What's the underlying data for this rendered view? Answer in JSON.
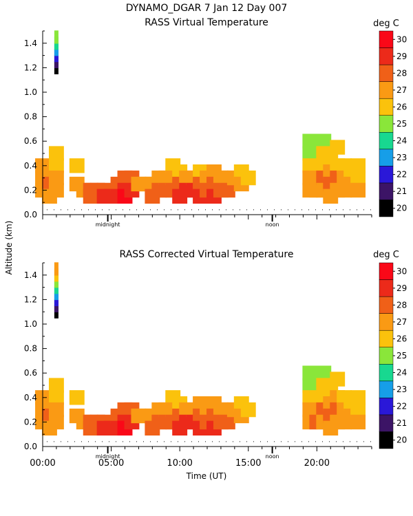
{
  "header": {
    "title": "DYNAMO_DGAR    7 Jan 12 Day 007"
  },
  "shared": {
    "ylabel": "Altitude (km)",
    "xlabel": "Time (UT)",
    "marker_midnight": "midnight",
    "marker_noon": "noon",
    "xlim": [
      0,
      24
    ],
    "ylim": [
      0,
      1.5
    ],
    "y_ticks": [
      "0.0",
      "0.2",
      "0.4",
      "0.6",
      "0.8",
      "1.0",
      "1.2",
      "1.4"
    ],
    "x_ticks": [
      "00:00",
      "05:00",
      "10:00",
      "15:00",
      "20:00"
    ],
    "colorbar_label": "deg C",
    "colorbar_ticks": [
      "20",
      "21",
      "22",
      "23",
      "24",
      "25",
      "26",
      "27",
      "28",
      "29",
      "30"
    ],
    "colorscale": [
      {
        "min": 20,
        "max": 21,
        "color": "#000000"
      },
      {
        "min": 21,
        "max": 22,
        "color": "#3c1466"
      },
      {
        "min": 22,
        "max": 23,
        "color": "#2a18d8"
      },
      {
        "min": 23,
        "max": 24,
        "color": "#169ee8"
      },
      {
        "min": 24,
        "max": 25,
        "color": "#18d890"
      },
      {
        "min": 25,
        "max": 26,
        "color": "#8ae63a"
      },
      {
        "min": 26,
        "max": 27,
        "color": "#fbc20c"
      },
      {
        "min": 27,
        "max": 28,
        "color": "#fa9a14"
      },
      {
        "min": 28,
        "max": 29,
        "color": "#f06018"
      },
      {
        "min": 29,
        "max": 30,
        "color": "#ec2a1a"
      },
      {
        "min": 30,
        "max": 31,
        "color": "#fa0818"
      }
    ]
  },
  "chart_data": [
    {
      "type": "heatmap",
      "title": "RASS Virtual Temperature",
      "xlabel": "",
      "ylabel": "Altitude (km)",
      "xlim": [
        0,
        24
      ],
      "ylim": [
        0,
        1.5
      ],
      "units": "deg C",
      "x_unit": "hours UT",
      "y_unit": "km",
      "cells": [
        {
          "t": 0.0,
          "z": 0.4,
          "v": 27.0
        },
        {
          "t": 0.0,
          "z": 0.3,
          "v": 27.6
        },
        {
          "t": 0.0,
          "z": 0.2,
          "v": 27.2
        },
        {
          "t": 0.5,
          "z": 0.35,
          "v": 27.5
        },
        {
          "t": 0.5,
          "z": 0.25,
          "v": 28.0
        },
        {
          "t": 0.5,
          "z": 0.15,
          "v": 27.3
        },
        {
          "t": 1.0,
          "z": 0.5,
          "v": 26.3
        },
        {
          "t": 1.0,
          "z": 0.4,
          "v": 26.6
        },
        {
          "t": 1.0,
          "z": 0.3,
          "v": 27.2
        },
        {
          "t": 1.0,
          "z": 0.2,
          "v": 27.6
        },
        {
          "t": 1.0,
          "z": 1.2,
          "v": 20.5
        },
        {
          "t": 1.0,
          "z": 1.25,
          "v": 21.5
        },
        {
          "t": 1.0,
          "z": 1.3,
          "v": 22.5
        },
        {
          "t": 1.0,
          "z": 1.35,
          "v": 23.5
        },
        {
          "t": 1.0,
          "z": 1.4,
          "v": 24.5
        },
        {
          "t": 1.0,
          "z": 1.45,
          "v": 25.5
        },
        {
          "t": 2.5,
          "z": 0.4,
          "v": 26.4
        },
        {
          "t": 2.5,
          "z": 0.25,
          "v": 27.2
        },
        {
          "t": 3.0,
          "z": 0.2,
          "v": 27.5
        },
        {
          "t": 3.5,
          "z": 0.2,
          "v": 28.0
        },
        {
          "t": 3.5,
          "z": 0.15,
          "v": 28.6
        },
        {
          "t": 4.0,
          "z": 0.2,
          "v": 28.3
        },
        {
          "t": 4.0,
          "z": 0.15,
          "v": 28.8
        },
        {
          "t": 4.5,
          "z": 0.2,
          "v": 28.4
        },
        {
          "t": 4.5,
          "z": 0.15,
          "v": 29.2
        },
        {
          "t": 5.0,
          "z": 0.15,
          "v": 29.3
        },
        {
          "t": 5.5,
          "z": 0.25,
          "v": 28.7
        },
        {
          "t": 5.5,
          "z": 0.15,
          "v": 29.6
        },
        {
          "t": 6.0,
          "z": 0.3,
          "v": 28.4
        },
        {
          "t": 6.0,
          "z": 0.2,
          "v": 29.4
        },
        {
          "t": 6.0,
          "z": 0.15,
          "v": 30.0
        },
        {
          "t": 6.5,
          "z": 0.3,
          "v": 28.1
        },
        {
          "t": 6.5,
          "z": 0.2,
          "v": 29.1
        },
        {
          "t": 7.0,
          "z": 0.25,
          "v": 27.7
        },
        {
          "t": 7.5,
          "z": 0.25,
          "v": 27.4
        },
        {
          "t": 8.0,
          "z": 0.25,
          "v": 27.6
        },
        {
          "t": 8.0,
          "z": 0.15,
          "v": 28.4
        },
        {
          "t": 8.5,
          "z": 0.3,
          "v": 27.8
        },
        {
          "t": 8.5,
          "z": 0.2,
          "v": 28.6
        },
        {
          "t": 9.0,
          "z": 0.3,
          "v": 27.4
        },
        {
          "t": 9.0,
          "z": 0.2,
          "v": 28.8
        },
        {
          "t": 9.5,
          "z": 0.4,
          "v": 26.4
        },
        {
          "t": 9.5,
          "z": 0.3,
          "v": 27.3
        },
        {
          "t": 9.5,
          "z": 0.2,
          "v": 28.6
        },
        {
          "t": 10.0,
          "z": 0.35,
          "v": 26.8
        },
        {
          "t": 10.0,
          "z": 0.25,
          "v": 28.0
        },
        {
          "t": 10.0,
          "z": 0.15,
          "v": 29.4
        },
        {
          "t": 10.5,
          "z": 0.3,
          "v": 27.4
        },
        {
          "t": 10.5,
          "z": 0.2,
          "v": 29.3
        },
        {
          "t": 11.0,
          "z": 0.3,
          "v": 27.5
        },
        {
          "t": 11.0,
          "z": 0.2,
          "v": 29.0
        },
        {
          "t": 11.5,
          "z": 0.35,
          "v": 26.9
        },
        {
          "t": 11.5,
          "z": 0.25,
          "v": 28.6
        },
        {
          "t": 11.5,
          "z": 0.15,
          "v": 29.2
        },
        {
          "t": 12.0,
          "z": 0.3,
          "v": 27.5
        },
        {
          "t": 12.0,
          "z": 0.2,
          "v": 28.8
        },
        {
          "t": 12.5,
          "z": 0.35,
          "v": 27.0
        },
        {
          "t": 12.5,
          "z": 0.25,
          "v": 28.5
        },
        {
          "t": 12.5,
          "z": 0.15,
          "v": 29.1
        },
        {
          "t": 13.0,
          "z": 0.3,
          "v": 27.2
        },
        {
          "t": 13.0,
          "z": 0.2,
          "v": 28.6
        },
        {
          "t": 13.5,
          "z": 0.3,
          "v": 27.1
        },
        {
          "t": 13.5,
          "z": 0.2,
          "v": 28.3
        },
        {
          "t": 14.0,
          "z": 0.3,
          "v": 27.3
        },
        {
          "t": 14.5,
          "z": 0.35,
          "v": 26.6
        },
        {
          "t": 14.5,
          "z": 0.25,
          "v": 27.4
        },
        {
          "t": 15.0,
          "z": 0.3,
          "v": 26.8
        },
        {
          "t": 19.5,
          "z": 0.6,
          "v": 25.3
        },
        {
          "t": 19.5,
          "z": 0.5,
          "v": 25.6
        },
        {
          "t": 19.5,
          "z": 0.4,
          "v": 26.3
        },
        {
          "t": 19.5,
          "z": 0.3,
          "v": 27.2
        },
        {
          "t": 19.5,
          "z": 0.2,
          "v": 27.6
        },
        {
          "t": 20.0,
          "z": 0.6,
          "v": 25.4
        },
        {
          "t": 20.0,
          "z": 0.5,
          "v": 25.7
        },
        {
          "t": 20.0,
          "z": 0.4,
          "v": 26.6
        },
        {
          "t": 20.0,
          "z": 0.3,
          "v": 27.6
        },
        {
          "t": 20.0,
          "z": 0.2,
          "v": 27.9
        },
        {
          "t": 20.5,
          "z": 0.6,
          "v": 25.5
        },
        {
          "t": 20.5,
          "z": 0.5,
          "v": 26.2
        },
        {
          "t": 20.5,
          "z": 0.4,
          "v": 26.8
        },
        {
          "t": 20.5,
          "z": 0.3,
          "v": 28.3
        },
        {
          "t": 20.5,
          "z": 0.2,
          "v": 27.8
        },
        {
          "t": 21.0,
          "z": 0.45,
          "v": 26.4
        },
        {
          "t": 21.0,
          "z": 0.35,
          "v": 27.2
        },
        {
          "t": 21.0,
          "z": 0.25,
          "v": 28.4
        },
        {
          "t": 21.0,
          "z": 0.15,
          "v": 27.6
        },
        {
          "t": 21.5,
          "z": 0.55,
          "v": 26.2
        },
        {
          "t": 21.5,
          "z": 0.4,
          "v": 26.9
        },
        {
          "t": 21.5,
          "z": 0.3,
          "v": 28.0
        },
        {
          "t": 21.5,
          "z": 0.2,
          "v": 27.5
        },
        {
          "t": 22.0,
          "z": 0.4,
          "v": 26.6
        },
        {
          "t": 22.0,
          "z": 0.3,
          "v": 27.6
        },
        {
          "t": 22.0,
          "z": 0.2,
          "v": 27.3
        },
        {
          "t": 22.5,
          "z": 0.35,
          "v": 26.7
        },
        {
          "t": 22.5,
          "z": 0.25,
          "v": 27.3
        },
        {
          "t": 23.0,
          "z": 0.4,
          "v": 26.2
        },
        {
          "t": 23.0,
          "z": 0.3,
          "v": 26.7
        },
        {
          "t": 23.0,
          "z": 0.2,
          "v": 27.2
        }
      ]
    },
    {
      "type": "heatmap",
      "title": "RASS Corrected Virtual Temperature",
      "xlabel": "Time (UT)",
      "ylabel": "Altitude (km)",
      "xlim": [
        0,
        24
      ],
      "ylim": [
        0,
        1.5
      ],
      "units": "deg C",
      "x_unit": "hours UT",
      "y_unit": "km",
      "cells": [
        {
          "t": 0.0,
          "z": 0.4,
          "v": 27.0
        },
        {
          "t": 0.0,
          "z": 0.3,
          "v": 27.6
        },
        {
          "t": 0.0,
          "z": 0.2,
          "v": 27.3
        },
        {
          "t": 0.5,
          "z": 0.35,
          "v": 27.5
        },
        {
          "t": 0.5,
          "z": 0.25,
          "v": 28.1
        },
        {
          "t": 0.5,
          "z": 0.15,
          "v": 27.4
        },
        {
          "t": 1.0,
          "z": 0.5,
          "v": 26.4
        },
        {
          "t": 1.0,
          "z": 0.4,
          "v": 26.7
        },
        {
          "t": 1.0,
          "z": 0.3,
          "v": 27.3
        },
        {
          "t": 1.0,
          "z": 0.2,
          "v": 27.7
        },
        {
          "t": 1.0,
          "z": 1.1,
          "v": 20.5
        },
        {
          "t": 1.0,
          "z": 1.15,
          "v": 21.5
        },
        {
          "t": 1.0,
          "z": 1.2,
          "v": 22.5
        },
        {
          "t": 1.0,
          "z": 1.25,
          "v": 23.5
        },
        {
          "t": 1.0,
          "z": 1.3,
          "v": 24.5
        },
        {
          "t": 1.0,
          "z": 1.35,
          "v": 25.5
        },
        {
          "t": 1.0,
          "z": 1.4,
          "v": 26.5
        },
        {
          "t": 1.0,
          "z": 1.45,
          "v": 27.5
        },
        {
          "t": 2.5,
          "z": 0.4,
          "v": 26.5
        },
        {
          "t": 2.5,
          "z": 0.25,
          "v": 27.3
        },
        {
          "t": 3.0,
          "z": 0.2,
          "v": 27.6
        },
        {
          "t": 3.5,
          "z": 0.2,
          "v": 28.1
        },
        {
          "t": 3.5,
          "z": 0.15,
          "v": 28.7
        },
        {
          "t": 4.0,
          "z": 0.2,
          "v": 28.4
        },
        {
          "t": 4.0,
          "z": 0.15,
          "v": 28.9
        },
        {
          "t": 4.5,
          "z": 0.2,
          "v": 28.5
        },
        {
          "t": 4.5,
          "z": 0.15,
          "v": 29.3
        },
        {
          "t": 5.0,
          "z": 0.15,
          "v": 29.4
        },
        {
          "t": 5.5,
          "z": 0.25,
          "v": 28.8
        },
        {
          "t": 5.5,
          "z": 0.15,
          "v": 29.7
        },
        {
          "t": 6.0,
          "z": 0.3,
          "v": 28.5
        },
        {
          "t": 6.0,
          "z": 0.2,
          "v": 29.5
        },
        {
          "t": 6.0,
          "z": 0.15,
          "v": 30.1
        },
        {
          "t": 6.5,
          "z": 0.3,
          "v": 28.2
        },
        {
          "t": 6.5,
          "z": 0.2,
          "v": 29.2
        },
        {
          "t": 7.0,
          "z": 0.25,
          "v": 27.8
        },
        {
          "t": 7.5,
          "z": 0.25,
          "v": 27.5
        },
        {
          "t": 8.0,
          "z": 0.25,
          "v": 27.7
        },
        {
          "t": 8.0,
          "z": 0.15,
          "v": 28.5
        },
        {
          "t": 8.5,
          "z": 0.3,
          "v": 27.9
        },
        {
          "t": 8.5,
          "z": 0.2,
          "v": 28.7
        },
        {
          "t": 9.0,
          "z": 0.3,
          "v": 27.5
        },
        {
          "t": 9.0,
          "z": 0.2,
          "v": 28.9
        },
        {
          "t": 9.5,
          "z": 0.4,
          "v": 26.5
        },
        {
          "t": 9.5,
          "z": 0.3,
          "v": 27.4
        },
        {
          "t": 9.5,
          "z": 0.2,
          "v": 28.7
        },
        {
          "t": 10.0,
          "z": 0.35,
          "v": 26.9
        },
        {
          "t": 10.0,
          "z": 0.25,
          "v": 28.1
        },
        {
          "t": 10.0,
          "z": 0.15,
          "v": 29.5
        },
        {
          "t": 10.5,
          "z": 0.3,
          "v": 27.5
        },
        {
          "t": 10.5,
          "z": 0.2,
          "v": 29.4
        },
        {
          "t": 11.0,
          "z": 0.3,
          "v": 27.6
        },
        {
          "t": 11.0,
          "z": 0.2,
          "v": 29.1
        },
        {
          "t": 11.5,
          "z": 0.35,
          "v": 27.0
        },
        {
          "t": 11.5,
          "z": 0.25,
          "v": 28.7
        },
        {
          "t": 11.5,
          "z": 0.15,
          "v": 29.3
        },
        {
          "t": 12.0,
          "z": 0.3,
          "v": 27.6
        },
        {
          "t": 12.0,
          "z": 0.2,
          "v": 28.9
        },
        {
          "t": 12.5,
          "z": 0.35,
          "v": 27.1
        },
        {
          "t": 12.5,
          "z": 0.25,
          "v": 28.6
        },
        {
          "t": 12.5,
          "z": 0.15,
          "v": 29.2
        },
        {
          "t": 13.0,
          "z": 0.3,
          "v": 27.3
        },
        {
          "t": 13.0,
          "z": 0.2,
          "v": 28.7
        },
        {
          "t": 13.5,
          "z": 0.3,
          "v": 27.2
        },
        {
          "t": 13.5,
          "z": 0.2,
          "v": 28.4
        },
        {
          "t": 14.0,
          "z": 0.3,
          "v": 27.4
        },
        {
          "t": 14.5,
          "z": 0.35,
          "v": 26.7
        },
        {
          "t": 14.5,
          "z": 0.25,
          "v": 27.5
        },
        {
          "t": 15.0,
          "z": 0.3,
          "v": 26.9
        },
        {
          "t": 19.5,
          "z": 0.6,
          "v": 25.4
        },
        {
          "t": 19.5,
          "z": 0.5,
          "v": 25.7
        },
        {
          "t": 19.5,
          "z": 0.4,
          "v": 26.4
        },
        {
          "t": 19.5,
          "z": 0.3,
          "v": 27.3
        },
        {
          "t": 19.5,
          "z": 0.2,
          "v": 27.7
        },
        {
          "t": 20.0,
          "z": 0.6,
          "v": 25.5
        },
        {
          "t": 20.0,
          "z": 0.5,
          "v": 25.8
        },
        {
          "t": 20.0,
          "z": 0.4,
          "v": 26.7
        },
        {
          "t": 20.0,
          "z": 0.3,
          "v": 27.7
        },
        {
          "t": 20.0,
          "z": 0.2,
          "v": 28.0
        },
        {
          "t": 20.5,
          "z": 0.6,
          "v": 25.6
        },
        {
          "t": 20.5,
          "z": 0.5,
          "v": 26.3
        },
        {
          "t": 20.5,
          "z": 0.4,
          "v": 26.9
        },
        {
          "t": 20.5,
          "z": 0.3,
          "v": 28.4
        },
        {
          "t": 20.5,
          "z": 0.2,
          "v": 27.9
        },
        {
          "t": 21.0,
          "z": 0.45,
          "v": 26.5
        },
        {
          "t": 21.0,
          "z": 0.35,
          "v": 27.3
        },
        {
          "t": 21.0,
          "z": 0.25,
          "v": 28.5
        },
        {
          "t": 21.0,
          "z": 0.15,
          "v": 27.7
        },
        {
          "t": 21.5,
          "z": 0.55,
          "v": 26.3
        },
        {
          "t": 21.5,
          "z": 0.4,
          "v": 27.0
        },
        {
          "t": 21.5,
          "z": 0.3,
          "v": 28.1
        },
        {
          "t": 21.5,
          "z": 0.2,
          "v": 27.6
        },
        {
          "t": 22.0,
          "z": 0.4,
          "v": 26.7
        },
        {
          "t": 22.0,
          "z": 0.3,
          "v": 27.7
        },
        {
          "t": 22.0,
          "z": 0.2,
          "v": 27.4
        },
        {
          "t": 22.5,
          "z": 0.35,
          "v": 26.8
        },
        {
          "t": 22.5,
          "z": 0.25,
          "v": 27.4
        },
        {
          "t": 23.0,
          "z": 0.4,
          "v": 26.3
        },
        {
          "t": 23.0,
          "z": 0.3,
          "v": 26.8
        },
        {
          "t": 23.0,
          "z": 0.2,
          "v": 27.3
        }
      ]
    }
  ]
}
